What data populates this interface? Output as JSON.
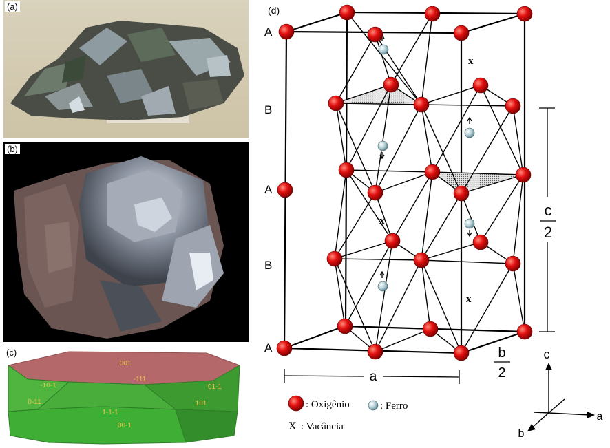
{
  "panels": {
    "a": "(a)",
    "b": "(b)",
    "c": "(c)",
    "d": "(d)"
  },
  "crystal_faces": {
    "top": "001",
    "upper_left": "-10-1",
    "upper_mid": "-111",
    "upper_right": "01-1",
    "left": "0-11",
    "front_left": "1-1-1",
    "front_mid": "00-1",
    "right": "101"
  },
  "structure": {
    "layer_labels": [
      "A",
      "B",
      "A",
      "B",
      "A"
    ],
    "vacancy_marks": [
      "x",
      "x",
      "x"
    ],
    "c_label_top": "c",
    "c_label_bottom": "2",
    "b_label_top": "b",
    "b_label_bottom": "2",
    "a_label": "a"
  },
  "legend": {
    "oxygen": ": Oxigênio",
    "iron": ": Ferro",
    "vacancy_symbol": "X",
    "vacancy": ": Vacância"
  },
  "axes": {
    "c": "c",
    "a": "a",
    "b": "b"
  },
  "colors": {
    "oxygen": "#d10000",
    "iron": "#a9c7cf",
    "crystal_green": "#3fae35",
    "crystal_top": "#b4686a"
  }
}
